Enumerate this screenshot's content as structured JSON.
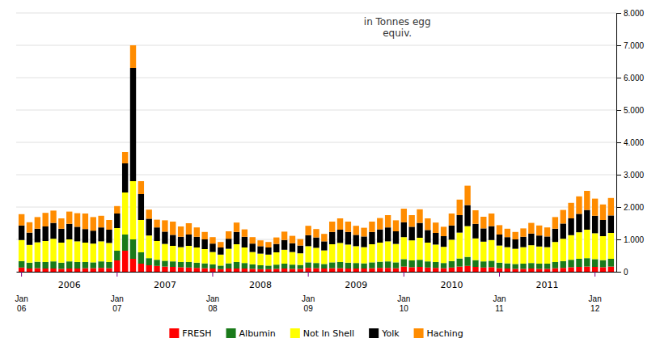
{
  "chart_data": {
    "type": "bar",
    "stacked": true,
    "title": "in Tonnes egg\nequiv.",
    "categories": [
      "Jan\n06",
      null,
      null,
      null,
      null,
      null,
      null,
      null,
      null,
      null,
      null,
      null,
      "Jan\n07",
      null,
      null,
      null,
      null,
      null,
      null,
      null,
      null,
      null,
      null,
      null,
      "Jan\n08",
      null,
      null,
      null,
      null,
      null,
      null,
      null,
      null,
      null,
      null,
      null,
      "Jan\n09",
      null,
      null,
      null,
      null,
      null,
      null,
      null,
      null,
      null,
      null,
      null,
      "Jan\n10",
      null,
      null,
      null,
      null,
      null,
      null,
      null,
      null,
      null,
      null,
      null,
      "Jan\n11",
      null,
      null,
      null,
      null,
      null,
      null,
      null,
      null,
      null,
      null,
      null,
      "Jan\n12",
      null,
      null
    ],
    "annotations": [
      {
        "text": "2006",
        "x": 6
      },
      {
        "text": "2007",
        "x": 18
      },
      {
        "text": "2008",
        "x": 30
      },
      {
        "text": "2009",
        "x": 42
      },
      {
        "text": "2010",
        "x": 54
      },
      {
        "text": "2011",
        "x": 66
      }
    ],
    "series": [
      {
        "name": "FRESH",
        "color": "#ff0000",
        "values": [
          130,
          100,
          110,
          100,
          100,
          90,
          100,
          100,
          110,
          110,
          120,
          110,
          350,
          650,
          400,
          250,
          200,
          180,
          160,
          150,
          140,
          130,
          120,
          110,
          100,
          80,
          100,
          100,
          100,
          90,
          80,
          80,
          90,
          100,
          90,
          90,
          120,
          110,
          100,
          110,
          110,
          100,
          100,
          100,
          110,
          120,
          120,
          110,
          160,
          140,
          150,
          130,
          120,
          110,
          130,
          160,
          180,
          150,
          130,
          140,
          110,
          100,
          90,
          90,
          100,
          90,
          90,
          110,
          120,
          140,
          150,
          160,
          150,
          140,
          160
        ]
      },
      {
        "name": "Albumin",
        "color": "#1a7a1a",
        "values": [
          200,
          180,
          200,
          200,
          220,
          190,
          220,
          200,
          190,
          180,
          200,
          190,
          300,
          500,
          600,
          350,
          220,
          190,
          180,
          170,
          160,
          170,
          160,
          150,
          130,
          110,
          160,
          200,
          170,
          140,
          120,
          110,
          130,
          150,
          130,
          120,
          170,
          160,
          140,
          180,
          190,
          180,
          170,
          160,
          180,
          190,
          200,
          180,
          230,
          210,
          220,
          190,
          180,
          160,
          200,
          250,
          280,
          210,
          190,
          200,
          170,
          160,
          150,
          160,
          170,
          160,
          160,
          190,
          210,
          230,
          250,
          260,
          240,
          220,
          240
        ]
      },
      {
        "name": "Not In Shell",
        "color": "#ffff00",
        "values": [
          650,
          550,
          600,
          650,
          700,
          620,
          680,
          640,
          600,
          580,
          620,
          590,
          700,
          1300,
          1800,
          1000,
          700,
          580,
          520,
          480,
          460,
          500,
          470,
          440,
          380,
          340,
          450,
          550,
          480,
          380,
          360,
          340,
          380,
          430,
          390,
          360,
          500,
          470,
          420,
          560,
          590,
          560,
          520,
          500,
          560,
          590,
          620,
          570,
          680,
          620,
          680,
          580,
          540,
          500,
          660,
          800,
          950,
          670,
          610,
          640,
          530,
          500,
          470,
          510,
          550,
          530,
          510,
          620,
          690,
          760,
          820,
          880,
          800,
          740,
          800
        ]
      },
      {
        "name": "Yolk",
        "color": "#000000",
        "values": [
          450,
          380,
          420,
          450,
          490,
          430,
          480,
          450,
          420,
          400,
          430,
          410,
          450,
          900,
          3500,
          800,
          520,
          420,
          380,
          340,
          320,
          350,
          330,
          300,
          260,
          220,
          310,
          380,
          330,
          260,
          230,
          220,
          260,
          300,
          270,
          240,
          340,
          320,
          280,
          380,
          410,
          390,
          350,
          330,
          380,
          410,
          430,
          390,
          460,
          420,
          460,
          390,
          360,
          330,
          440,
          540,
          650,
          450,
          410,
          430,
          340,
          310,
          290,
          320,
          360,
          340,
          330,
          410,
          470,
          520,
          570,
          610,
          540,
          500,
          540
        ]
      },
      {
        "name": "Haching",
        "color": "#ff8c00",
        "values": [
          350,
          320,
          360,
          420,
          380,
          320,
          380,
          420,
          480,
          420,
          360,
          300,
          230,
          350,
          700,
          400,
          280,
          240,
          350,
          410,
          320,
          350,
          290,
          230,
          200,
          170,
          230,
          290,
          230,
          200,
          180,
          170,
          200,
          260,
          230,
          200,
          290,
          260,
          230,
          320,
          350,
          320,
          280,
          270,
          320,
          350,
          380,
          340,
          420,
          360,
          420,
          360,
          320,
          290,
          370,
          480,
          600,
          420,
          360,
          390,
          290,
          260,
          230,
          260,
          330,
          310,
          280,
          360,
          420,
          480,
          540,
          590,
          530,
          480,
          540
        ]
      }
    ],
    "ylim": [
      0,
      8000
    ],
    "yticks": [
      0,
      {
        "value": 1000,
        "label": "1.000"
      },
      {
        "value": 2000,
        "label": "2.000"
      },
      {
        "value": 3000,
        "label": "3.000"
      },
      {
        "value": 4000,
        "label": "4.000"
      },
      {
        "value": 5000,
        "label": "5.000"
      },
      {
        "value": 6000,
        "label": "6.000"
      },
      {
        "value": 7000,
        "label": "7.000"
      },
      {
        "value": 8000,
        "label": "8.000"
      }
    ],
    "grid": true,
    "legend": "bottom"
  }
}
